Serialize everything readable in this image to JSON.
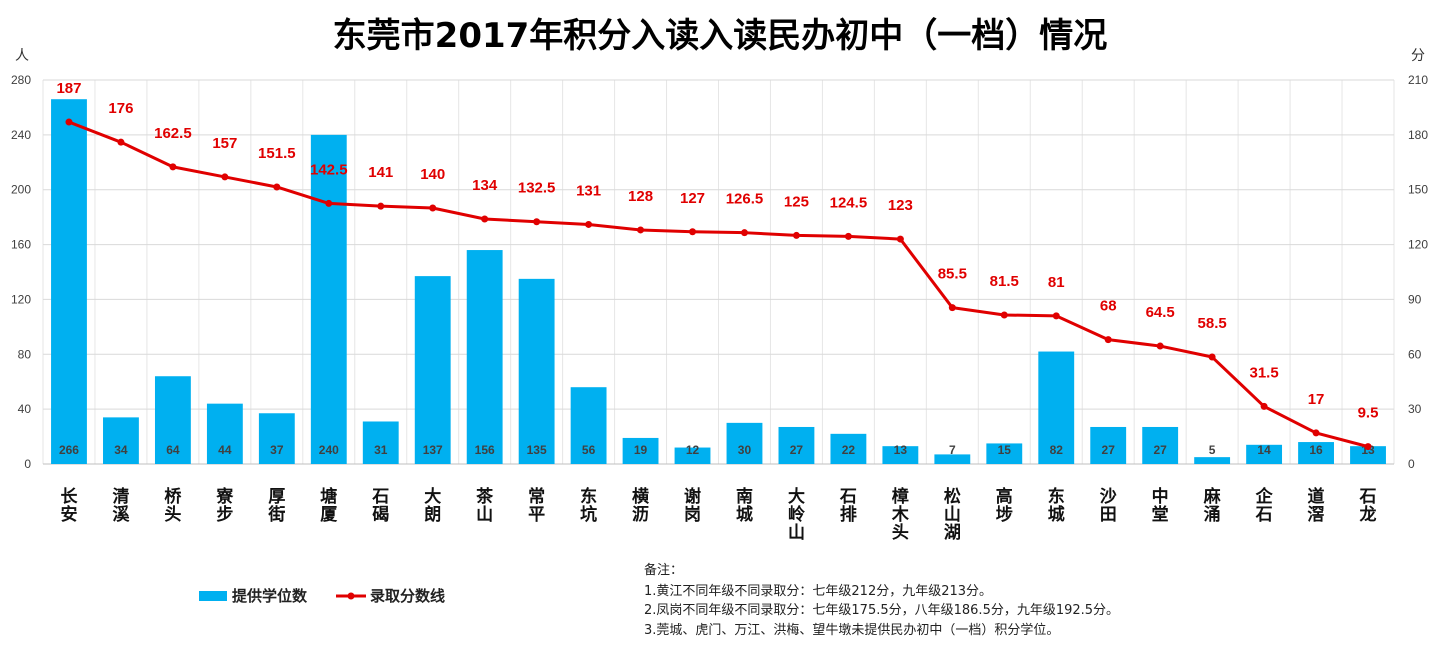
{
  "chart_data": {
    "type": "bar",
    "title": "东莞市2017年积分入读入读民办初中（一档）情况",
    "y_left_label": "人",
    "y_right_label": "分",
    "y_left_lim": [
      0,
      280
    ],
    "y_left_ticks": [
      "0",
      "40",
      "80",
      "120",
      "160",
      "200",
      "240",
      "280"
    ],
    "y_right_lim": [
      0,
      210
    ],
    "y_right_ticks": [
      "0",
      "30",
      "60",
      "90",
      "120",
      "150",
      "180",
      "210"
    ],
    "grid": true,
    "legend_position": "bottom-left",
    "categories": [
      "长安",
      "清溪",
      "桥头",
      "寮步",
      "厚街",
      "塘厦",
      "石碣",
      "大朗",
      "茶山",
      "常平",
      "东坑",
      "横沥",
      "谢岗",
      "南城",
      "大岭山",
      "石排",
      "樟木头",
      "松山湖",
      "高埗",
      "东城",
      "沙田",
      "中堂",
      "麻涌",
      "企石",
      "道滘",
      "石龙"
    ],
    "series": [
      {
        "name": "提供学位数",
        "type": "bar",
        "axis": "left",
        "color": "#00b0f0",
        "values": [
          266,
          34,
          64,
          44,
          37,
          240,
          31,
          137,
          156,
          135,
          56,
          19,
          12,
          30,
          27,
          22,
          13,
          7,
          15,
          82,
          27,
          27,
          5,
          14,
          16,
          13
        ],
        "labels": [
          "266",
          "34",
          "64",
          "44",
          "37",
          "240",
          "31",
          "137",
          "156",
          "135",
          "56",
          "19",
          "12",
          "30",
          "27",
          "22",
          "13",
          "7",
          "15",
          "82",
          "27",
          "27",
          "5",
          "14",
          "16",
          "13"
        ]
      },
      {
        "name": "录取分数线",
        "type": "line",
        "axis": "right",
        "color": "#e00000",
        "values": [
          187,
          176,
          162.5,
          157,
          151.5,
          142.5,
          141,
          140,
          134,
          132.5,
          131,
          128,
          127,
          126.5,
          125,
          124.5,
          123,
          85.5,
          81.5,
          81,
          68,
          64.5,
          58.5,
          31.5,
          17,
          9.5
        ],
        "labels": [
          "187",
          "176",
          "162.5",
          "157",
          "151.5",
          "142.5",
          "141",
          "140",
          "134",
          "132.5",
          "131",
          "128",
          "127",
          "126.5",
          "125",
          "124.5",
          "123",
          "85.5",
          "81.5",
          "81",
          "68",
          "64.5",
          "58.5",
          "31.5",
          "17",
          "9.5"
        ]
      }
    ],
    "notes": {
      "heading": "备注：",
      "lines": [
        "1.黄江不同年级不同录取分：七年级212分，九年级213分。",
        "2.凤岗不同年级不同录取分：七年级175.5分，八年级186.5分，九年级192.5分。",
        "3.莞城、虎门、万江、洪梅、望牛墩未提供民办初中（一档）积分学位。"
      ]
    }
  }
}
